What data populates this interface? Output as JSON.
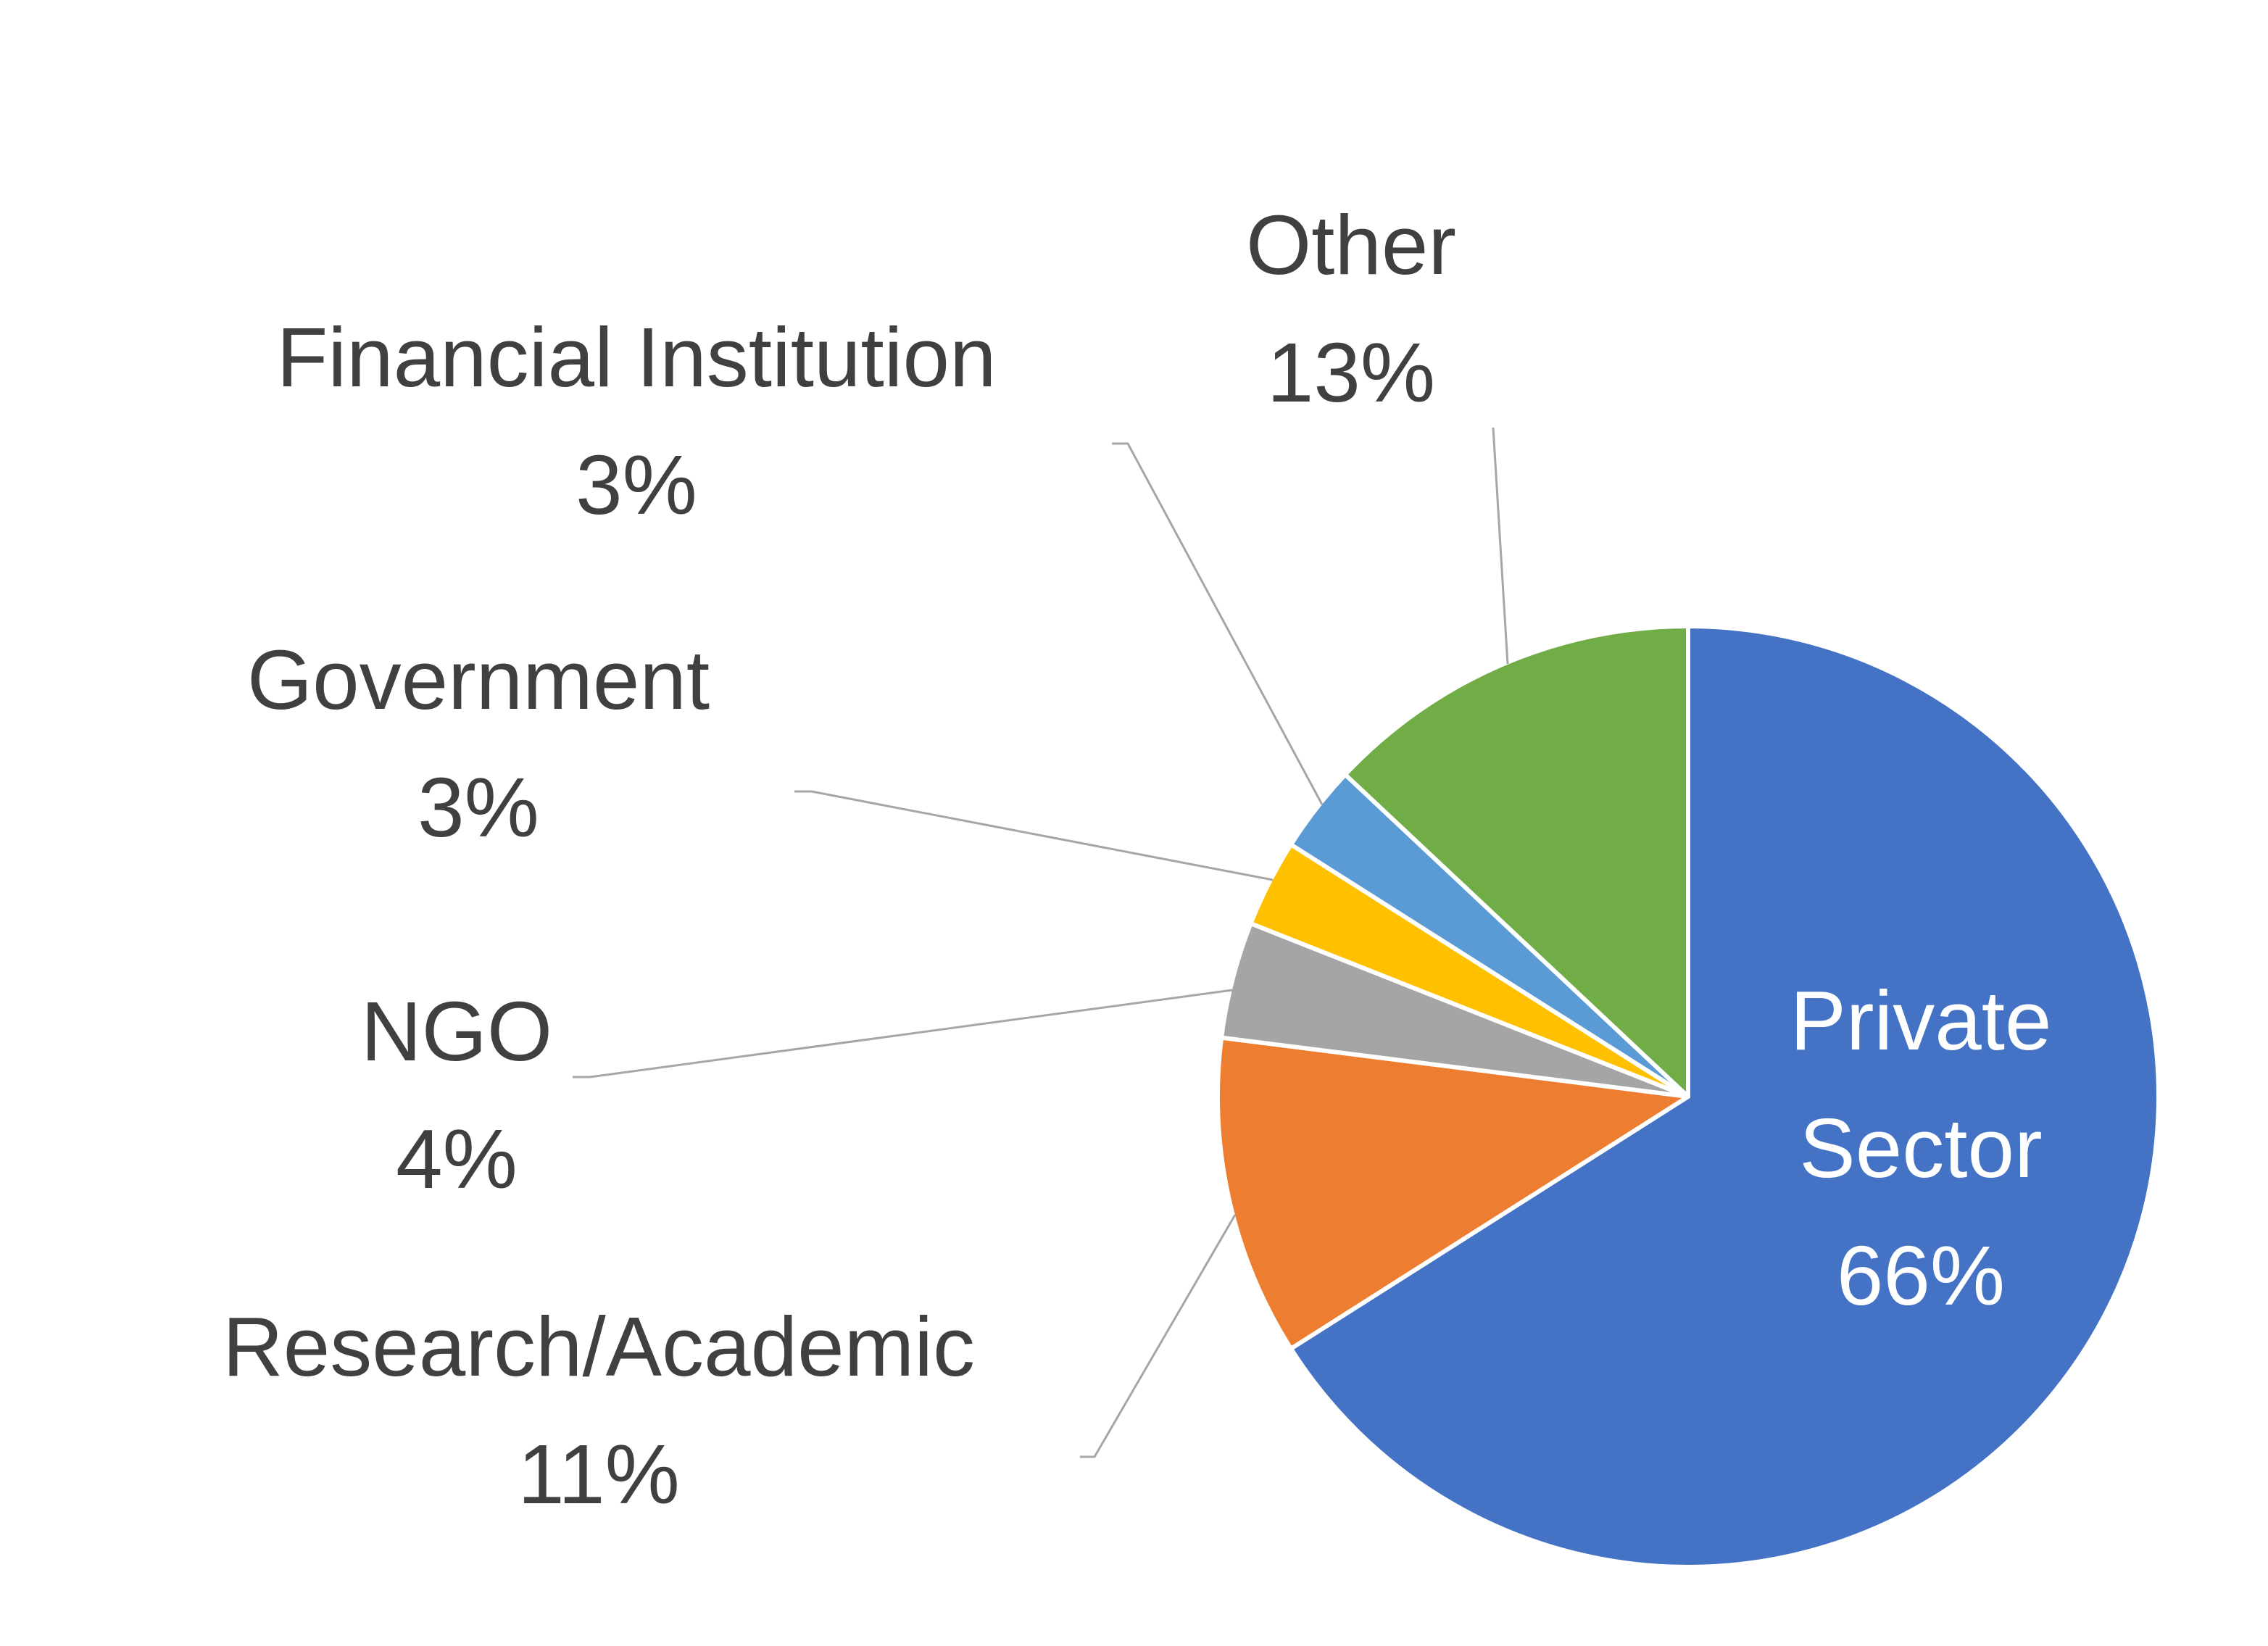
{
  "chart_data": {
    "type": "pie",
    "categories": [
      "Private Sector",
      "Research/Academic",
      "NGO",
      "Government",
      "Financial Institution",
      "Other"
    ],
    "values": [
      66,
      11,
      4,
      3,
      3,
      13
    ],
    "value_labels": [
      "66%",
      "11%",
      "4%",
      "3%",
      "3%",
      "13%"
    ],
    "colors": [
      "#4472c4",
      "#ed7d31",
      "#a5a5a5",
      "#ffc000",
      "#5b9bd5",
      "#70ad47"
    ]
  }
}
